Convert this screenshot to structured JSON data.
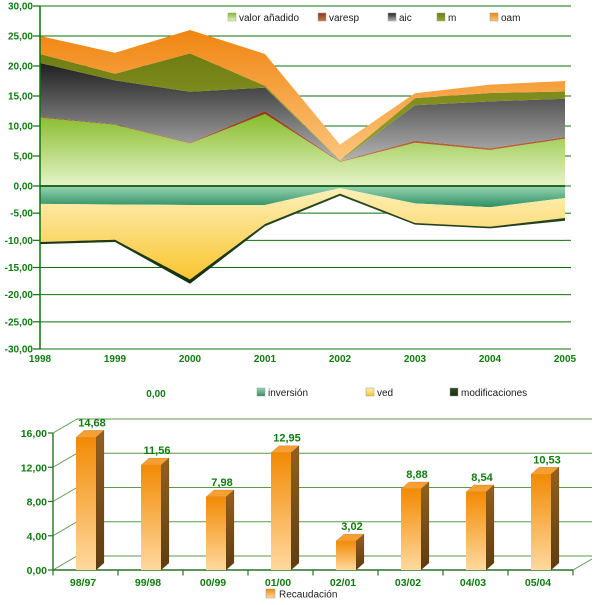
{
  "page": {
    "background": "#ffffff"
  },
  "chart_data": [
    {
      "type": "area",
      "stacked": true,
      "title": "",
      "x_categories": [
        "1998",
        "1999",
        "2000",
        "2001",
        "2002",
        "2003",
        "2004",
        "2005"
      ],
      "ylim": [
        -30,
        30
      ],
      "y_tick_step": 5,
      "y_tick_format": "comma-decimal",
      "grid": true,
      "zero_axis": true,
      "stray_label": "0,00",
      "legend_top": [
        "valor añadido",
        "varesp",
        "aic",
        "m",
        "oam"
      ],
      "legend_bottom": [
        "inversión",
        "ved",
        "modificaciones"
      ],
      "series": [
        {
          "name": "valor añadido",
          "legend": "top",
          "values": [
            11.4,
            10.2,
            7.1,
            12.0,
            4.0,
            7.2,
            6.0,
            7.9
          ],
          "color_top": "#86BC2A",
          "color_bottom": "#E6F4C9"
        },
        {
          "name": "varesp",
          "legend": "top",
          "values": [
            0.1,
            0.1,
            0.1,
            0.5,
            0.1,
            0.35,
            0.3,
            0.25
          ],
          "color_top": "#8C3A17",
          "color_bottom": "#C4764A"
        },
        {
          "name": "aic",
          "legend": "top",
          "values": [
            9.0,
            7.3,
            8.5,
            3.9,
            0.1,
            5.9,
            7.8,
            6.4
          ],
          "color_top": "#1F1F1F",
          "color_bottom": "#B5B5B5"
        },
        {
          "name": "m",
          "legend": "top",
          "values": [
            1.5,
            1.1,
            6.4,
            0.3,
            0.1,
            1.2,
            1.4,
            1.2
          ],
          "color_top": "#6E7C12",
          "color_bottom": "#9AA52F"
        },
        {
          "name": "oam",
          "legend": "top",
          "values": [
            3.0,
            3.5,
            3.9,
            5.3,
            2.6,
            0.8,
            1.4,
            1.75
          ],
          "color_top": "#F08511",
          "color_bottom": "#FCC57C"
        },
        {
          "name": "inversión",
          "legend": "bottom",
          "values": [
            -3.3,
            -3.4,
            -3.5,
            -3.5,
            -0.4,
            -3.2,
            -3.9,
            -2.2
          ],
          "color_top": "#97D5B2",
          "color_bottom": "#2E8F63"
        },
        {
          "name": "ved",
          "legend": "bottom",
          "values": [
            -7.0,
            -6.5,
            -13.7,
            -3.5,
            -1.0,
            -3.6,
            -3.6,
            -3.7
          ],
          "color_top": "#FDF0B8",
          "color_bottom": "#FAC52F"
        },
        {
          "name": "modificaciones",
          "legend": "bottom",
          "values": [
            -0.4,
            -0.4,
            -0.8,
            -0.4,
            -0.4,
            -0.3,
            -0.3,
            -0.5
          ],
          "color_top": "#2C4A20",
          "color_bottom": "#16300F"
        }
      ],
      "colors": {
        "grid": "#0B720B",
        "axis": "#0B720B",
        "zero_axis": "#0A5A0A",
        "tick_label": "#0E7C0E",
        "legend_text": "#1A1A1A"
      }
    },
    {
      "type": "bar",
      "style": "3d",
      "title": "",
      "categories": [
        "98/97",
        "99/98",
        "00/99",
        "01/00",
        "02/01",
        "03/02",
        "04/03",
        "05/04"
      ],
      "values": [
        14.68,
        11.56,
        7.98,
        12.95,
        3.02,
        8.88,
        8.54,
        10.53
      ],
      "ylim": [
        0,
        16
      ],
      "y_tick_step": 4,
      "y_tick_format": "comma-decimal",
      "data_labels_visible": true,
      "legend": [
        "Recaudación"
      ],
      "legend_position": "bottom",
      "colors": {
        "bar_front_top": "#F28A05",
        "bar_front_bottom": "#FFD99E",
        "bar_side_top": "#936020",
        "bar_side_bottom": "#5E3C10",
        "bar_top_face": "#F89F33",
        "grid": "#5B9A4A",
        "axis": "#267326",
        "tick_label": "#0E7C0E",
        "value_label": "#0E7C0E",
        "legend_text": "#1A1A1A"
      }
    }
  ]
}
